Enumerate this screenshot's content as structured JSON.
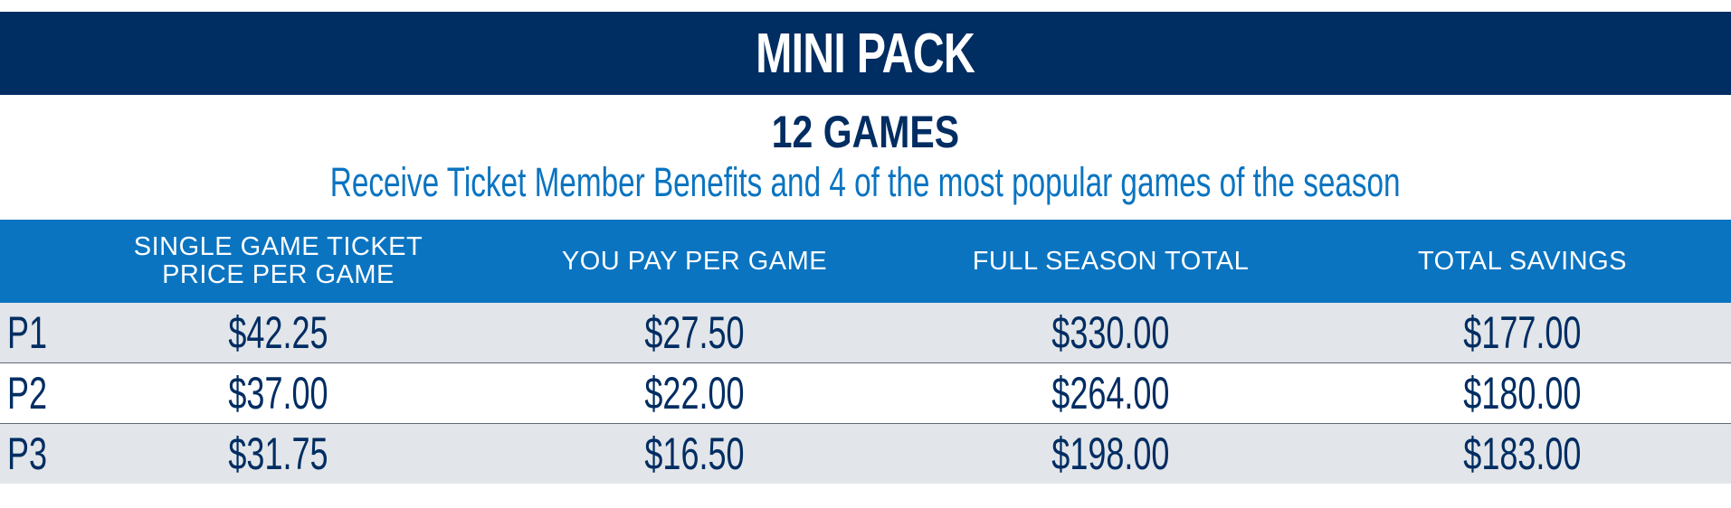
{
  "title": "MINI PACK",
  "games": "12 GAMES",
  "subtitle": "Receive Ticket Member Benefits and 4 of the most popular games of the season",
  "colors": {
    "navy": "#002d62",
    "blue": "#0a74c1",
    "row_shade": "#e2e5e9"
  },
  "table": {
    "headers": [
      "SINGLE GAME TICKET PRICE PER GAME",
      "YOU PAY PER GAME",
      "FULL SEASON TOTAL",
      "TOTAL SAVINGS"
    ],
    "header_lines": [
      [
        "SINGLE GAME TICKET",
        "PRICE PER GAME"
      ]
    ],
    "rows": [
      {
        "label": "P1",
        "cells": [
          "$42.25",
          "$27.50",
          "$330.00",
          "$177.00"
        ]
      },
      {
        "label": "P2",
        "cells": [
          "$37.00",
          "$22.00",
          "$264.00",
          "$180.00"
        ]
      },
      {
        "label": "P3",
        "cells": [
          "$31.75",
          "$16.50",
          "$198.00",
          "$183.00"
        ]
      }
    ]
  }
}
